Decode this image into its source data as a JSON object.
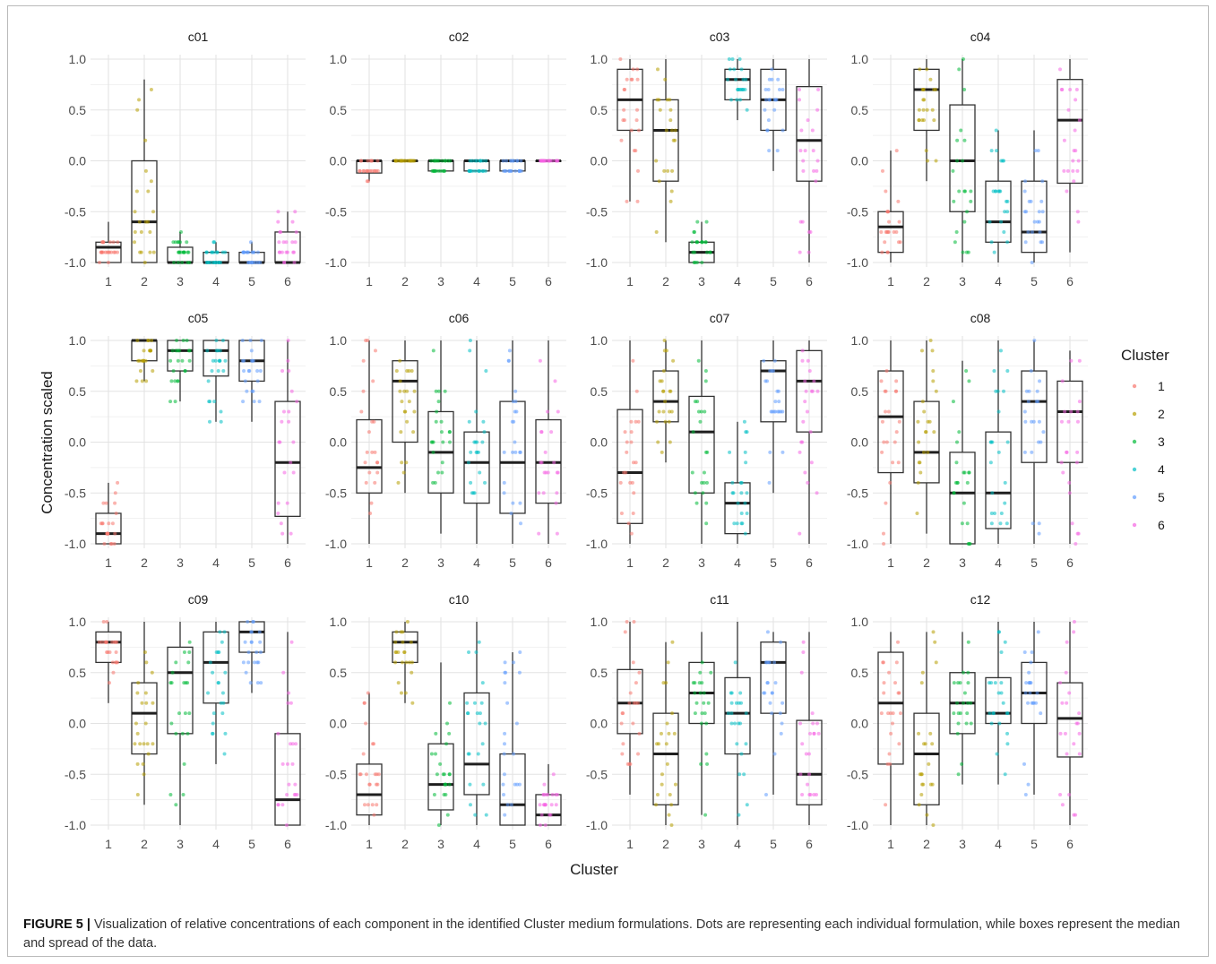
{
  "caption": {
    "label": "FIGURE 5 |",
    "text": "Visualization of relative concentrations of each component in the identified Cluster medium formulations. Dots are representing each individual formulation, while boxes represent the median and spread of the data."
  },
  "colors": {
    "1": "#F8766D",
    "2": "#B79F00",
    "3": "#00BA38",
    "4": "#00BFC4",
    "5": "#619CFF",
    "6": "#F564E3"
  },
  "chart_data": {
    "type": "boxplot",
    "xlabel": "Cluster",
    "ylabel": "Concentration scaled",
    "ylim": [
      -1.0,
      1.0
    ],
    "yticks": [
      "1.0",
      "0.5",
      "0.0",
      "-0.5",
      "-1.0"
    ],
    "xticks": [
      "1",
      "2",
      "3",
      "4",
      "5",
      "6"
    ],
    "grid": true,
    "legend": {
      "title": "Cluster",
      "entries": [
        "1",
        "2",
        "3",
        "4",
        "5",
        "6"
      ],
      "position": "right"
    },
    "panels": [
      {
        "title": "c01",
        "boxes": [
          {
            "q1": -1.0,
            "median": -0.85,
            "q3": -0.8,
            "lo": -1.0,
            "hi": -0.6
          },
          {
            "q1": -1.0,
            "median": -0.6,
            "q3": 0.0,
            "lo": -1.0,
            "hi": 0.8
          },
          {
            "q1": -1.0,
            "median": -1.0,
            "q3": -0.85,
            "lo": -1.0,
            "hi": -0.7
          },
          {
            "q1": -1.0,
            "median": -1.0,
            "q3": -0.9,
            "lo": -1.0,
            "hi": -0.8
          },
          {
            "q1": -1.0,
            "median": -1.0,
            "q3": -0.9,
            "lo": -1.0,
            "hi": -0.8
          },
          {
            "q1": -1.0,
            "median": -1.0,
            "q3": -0.7,
            "lo": -1.0,
            "hi": -0.5
          }
        ]
      },
      {
        "title": "c02",
        "boxes": [
          {
            "q1": -0.12,
            "median": 0.0,
            "q3": 0.0,
            "lo": -0.2,
            "hi": 0.0
          },
          {
            "q1": 0.0,
            "median": 0.0,
            "q3": 0.0,
            "lo": 0.0,
            "hi": 0.0
          },
          {
            "q1": -0.1,
            "median": 0.0,
            "q3": 0.0,
            "lo": -0.1,
            "hi": 0.0
          },
          {
            "q1": -0.1,
            "median": 0.0,
            "q3": 0.0,
            "lo": -0.1,
            "hi": 0.0
          },
          {
            "q1": -0.1,
            "median": 0.0,
            "q3": 0.0,
            "lo": -0.1,
            "hi": 0.0
          },
          {
            "q1": 0.0,
            "median": 0.0,
            "q3": 0.0,
            "lo": 0.0,
            "hi": 0.0
          }
        ]
      },
      {
        "title": "c03",
        "boxes": [
          {
            "q1": 0.3,
            "median": 0.6,
            "q3": 0.9,
            "lo": -0.4,
            "hi": 1.0
          },
          {
            "q1": -0.2,
            "median": 0.3,
            "q3": 0.6,
            "lo": -0.8,
            "hi": 1.0
          },
          {
            "q1": -1.0,
            "median": -0.9,
            "q3": -0.8,
            "lo": -1.0,
            "hi": -0.6
          },
          {
            "q1": 0.6,
            "median": 0.8,
            "q3": 0.9,
            "lo": 0.4,
            "hi": 1.0
          },
          {
            "q1": 0.3,
            "median": 0.6,
            "q3": 0.9,
            "lo": -0.1,
            "hi": 1.0
          },
          {
            "q1": -0.2,
            "median": 0.2,
            "q3": 0.73,
            "lo": -1.0,
            "hi": 1.0
          }
        ]
      },
      {
        "title": "c04",
        "boxes": [
          {
            "q1": -0.9,
            "median": -0.65,
            "q3": -0.5,
            "lo": -1.0,
            "hi": 0.1
          },
          {
            "q1": 0.3,
            "median": 0.7,
            "q3": 0.9,
            "lo": -0.2,
            "hi": 1.0
          },
          {
            "q1": -0.5,
            "median": 0.0,
            "q3": 0.55,
            "lo": -1.0,
            "hi": 1.0
          },
          {
            "q1": -0.8,
            "median": -0.6,
            "q3": -0.2,
            "lo": -1.0,
            "hi": 0.3
          },
          {
            "q1": -0.9,
            "median": -0.7,
            "q3": -0.2,
            "lo": -1.0,
            "hi": 0.3
          },
          {
            "q1": -0.22,
            "median": 0.4,
            "q3": 0.8,
            "lo": -0.9,
            "hi": 1.0
          }
        ]
      },
      {
        "title": "c05",
        "boxes": [
          {
            "q1": -1.0,
            "median": -0.9,
            "q3": -0.7,
            "lo": -1.0,
            "hi": -0.4
          },
          {
            "q1": 0.8,
            "median": 1.0,
            "q3": 1.0,
            "lo": 0.6,
            "hi": 1.0
          },
          {
            "q1": 0.7,
            "median": 0.9,
            "q3": 1.0,
            "lo": 0.4,
            "hi": 1.0
          },
          {
            "q1": 0.65,
            "median": 0.9,
            "q3": 1.0,
            "lo": 0.2,
            "hi": 1.0
          },
          {
            "q1": 0.6,
            "median": 0.8,
            "q3": 1.0,
            "lo": 0.2,
            "hi": 1.0
          },
          {
            "q1": -0.73,
            "median": -0.2,
            "q3": 0.4,
            "lo": -1.0,
            "hi": 1.0
          }
        ]
      },
      {
        "title": "c06",
        "boxes": [
          {
            "q1": -0.5,
            "median": -0.25,
            "q3": 0.22,
            "lo": -1.0,
            "hi": 1.0
          },
          {
            "q1": 0.0,
            "median": 0.6,
            "q3": 0.8,
            "lo": -0.5,
            "hi": 1.0
          },
          {
            "q1": -0.5,
            "median": -0.1,
            "q3": 0.3,
            "lo": -0.9,
            "hi": 1.0
          },
          {
            "q1": -0.6,
            "median": -0.2,
            "q3": 0.1,
            "lo": -1.0,
            "hi": 1.0
          },
          {
            "q1": -0.7,
            "median": -0.2,
            "q3": 0.4,
            "lo": -1.0,
            "hi": 1.0
          },
          {
            "q1": -0.6,
            "median": -0.2,
            "q3": 0.22,
            "lo": -1.0,
            "hi": 1.0
          }
        ]
      },
      {
        "title": "c07",
        "boxes": [
          {
            "q1": -0.8,
            "median": -0.3,
            "q3": 0.32,
            "lo": -1.0,
            "hi": 1.0
          },
          {
            "q1": 0.2,
            "median": 0.4,
            "q3": 0.7,
            "lo": -0.2,
            "hi": 1.0
          },
          {
            "q1": -0.5,
            "median": 0.1,
            "q3": 0.45,
            "lo": -1.0,
            "hi": 1.0
          },
          {
            "q1": -0.9,
            "median": -0.6,
            "q3": -0.4,
            "lo": -1.0,
            "hi": 0.2
          },
          {
            "q1": 0.2,
            "median": 0.7,
            "q3": 0.8,
            "lo": -0.5,
            "hi": 1.0
          },
          {
            "q1": 0.1,
            "median": 0.6,
            "q3": 0.9,
            "lo": -1.0,
            "hi": 1.0
          }
        ]
      },
      {
        "title": "c08",
        "boxes": [
          {
            "q1": -0.3,
            "median": 0.25,
            "q3": 0.7,
            "lo": -1.0,
            "hi": 1.0
          },
          {
            "q1": -0.4,
            "median": -0.1,
            "q3": 0.4,
            "lo": -0.9,
            "hi": 1.0
          },
          {
            "q1": -1.0,
            "median": -0.5,
            "q3": -0.1,
            "lo": -1.0,
            "hi": 0.8
          },
          {
            "q1": -0.85,
            "median": -0.5,
            "q3": 0.1,
            "lo": -1.0,
            "hi": 1.0
          },
          {
            "q1": -0.2,
            "median": 0.4,
            "q3": 0.7,
            "lo": -1.0,
            "hi": 1.0
          },
          {
            "q1": -0.2,
            "median": 0.3,
            "q3": 0.6,
            "lo": -1.0,
            "hi": 0.9
          }
        ]
      },
      {
        "title": "c09",
        "boxes": [
          {
            "q1": 0.6,
            "median": 0.8,
            "q3": 0.9,
            "lo": 0.2,
            "hi": 1.0
          },
          {
            "q1": -0.3,
            "median": 0.1,
            "q3": 0.4,
            "lo": -0.8,
            "hi": 1.0
          },
          {
            "q1": -0.1,
            "median": 0.5,
            "q3": 0.75,
            "lo": -1.0,
            "hi": 1.0
          },
          {
            "q1": 0.2,
            "median": 0.6,
            "q3": 0.9,
            "lo": -0.4,
            "hi": 1.0
          },
          {
            "q1": 0.7,
            "median": 0.9,
            "q3": 1.0,
            "lo": 0.3,
            "hi": 1.0
          },
          {
            "q1": -1.0,
            "median": -0.75,
            "q3": -0.1,
            "lo": -1.0,
            "hi": 0.9
          }
        ]
      },
      {
        "title": "c10",
        "boxes": [
          {
            "q1": -0.9,
            "median": -0.7,
            "q3": -0.4,
            "lo": -1.0,
            "hi": 0.3
          },
          {
            "q1": 0.6,
            "median": 0.8,
            "q3": 0.9,
            "lo": 0.2,
            "hi": 1.0
          },
          {
            "q1": -0.85,
            "median": -0.6,
            "q3": -0.2,
            "lo": -1.0,
            "hi": 0.6
          },
          {
            "q1": -0.7,
            "median": -0.4,
            "q3": 0.3,
            "lo": -1.0,
            "hi": 1.0
          },
          {
            "q1": -1.0,
            "median": -0.8,
            "q3": -0.3,
            "lo": -1.0,
            "hi": 0.7
          },
          {
            "q1": -1.0,
            "median": -0.9,
            "q3": -0.7,
            "lo": -1.0,
            "hi": -0.4
          }
        ]
      },
      {
        "title": "c11",
        "boxes": [
          {
            "q1": -0.1,
            "median": 0.2,
            "q3": 0.53,
            "lo": -0.7,
            "hi": 1.0
          },
          {
            "q1": -0.8,
            "median": -0.3,
            "q3": 0.1,
            "lo": -1.0,
            "hi": 0.8
          },
          {
            "q1": 0.0,
            "median": 0.3,
            "q3": 0.6,
            "lo": -0.9,
            "hi": 0.9
          },
          {
            "q1": -0.3,
            "median": 0.1,
            "q3": 0.45,
            "lo": -1.0,
            "hi": 1.0
          },
          {
            "q1": 0.1,
            "median": 0.6,
            "q3": 0.8,
            "lo": -0.7,
            "hi": 0.9
          },
          {
            "q1": -0.8,
            "median": -0.5,
            "q3": 0.03,
            "lo": -1.0,
            "hi": 0.9
          }
        ]
      },
      {
        "title": "c12",
        "boxes": [
          {
            "q1": -0.4,
            "median": 0.2,
            "q3": 0.7,
            "lo": -1.0,
            "hi": 0.9
          },
          {
            "q1": -0.8,
            "median": -0.3,
            "q3": 0.1,
            "lo": -1.0,
            "hi": 0.9
          },
          {
            "q1": -0.1,
            "median": 0.2,
            "q3": 0.5,
            "lo": -0.6,
            "hi": 0.9
          },
          {
            "q1": 0.0,
            "median": 0.1,
            "q3": 0.45,
            "lo": -0.6,
            "hi": 1.0
          },
          {
            "q1": 0.0,
            "median": 0.3,
            "q3": 0.6,
            "lo": -0.7,
            "hi": 1.0
          },
          {
            "q1": -0.33,
            "median": 0.05,
            "q3": 0.4,
            "lo": -1.0,
            "hi": 1.0
          }
        ]
      }
    ]
  }
}
